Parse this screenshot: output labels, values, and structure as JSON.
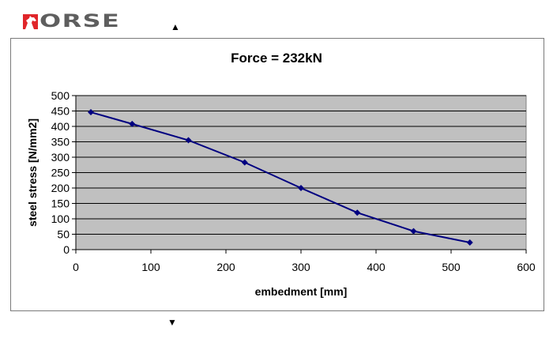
{
  "logo": {
    "text": "ORSE",
    "mark_color": "#e0262a",
    "text_color": "#5e5e5e",
    "icon": "horse-head-icon"
  },
  "arrows": {
    "up": "▲",
    "down": "▼"
  },
  "chart_data": {
    "type": "line",
    "title": "Force = 232kN",
    "xlabel": "embedment [mm]",
    "ylabel": "steel stress [N/mm2]",
    "xlim": [
      0,
      600
    ],
    "ylim": [
      0,
      500
    ],
    "xticks": [
      0,
      100,
      200,
      300,
      400,
      500,
      600
    ],
    "yticks": [
      0,
      50,
      100,
      150,
      200,
      250,
      300,
      350,
      400,
      450,
      500
    ],
    "grid": "horizontal",
    "legend": null,
    "plot_background": "#c0c0c0",
    "series": [
      {
        "name": "steel stress",
        "color": "#000080",
        "marker": "diamond",
        "x": [
          20,
          75,
          150,
          225,
          300,
          375,
          450,
          525
        ],
        "y": [
          446,
          408,
          355,
          283,
          200,
          120,
          60,
          23
        ]
      }
    ]
  }
}
